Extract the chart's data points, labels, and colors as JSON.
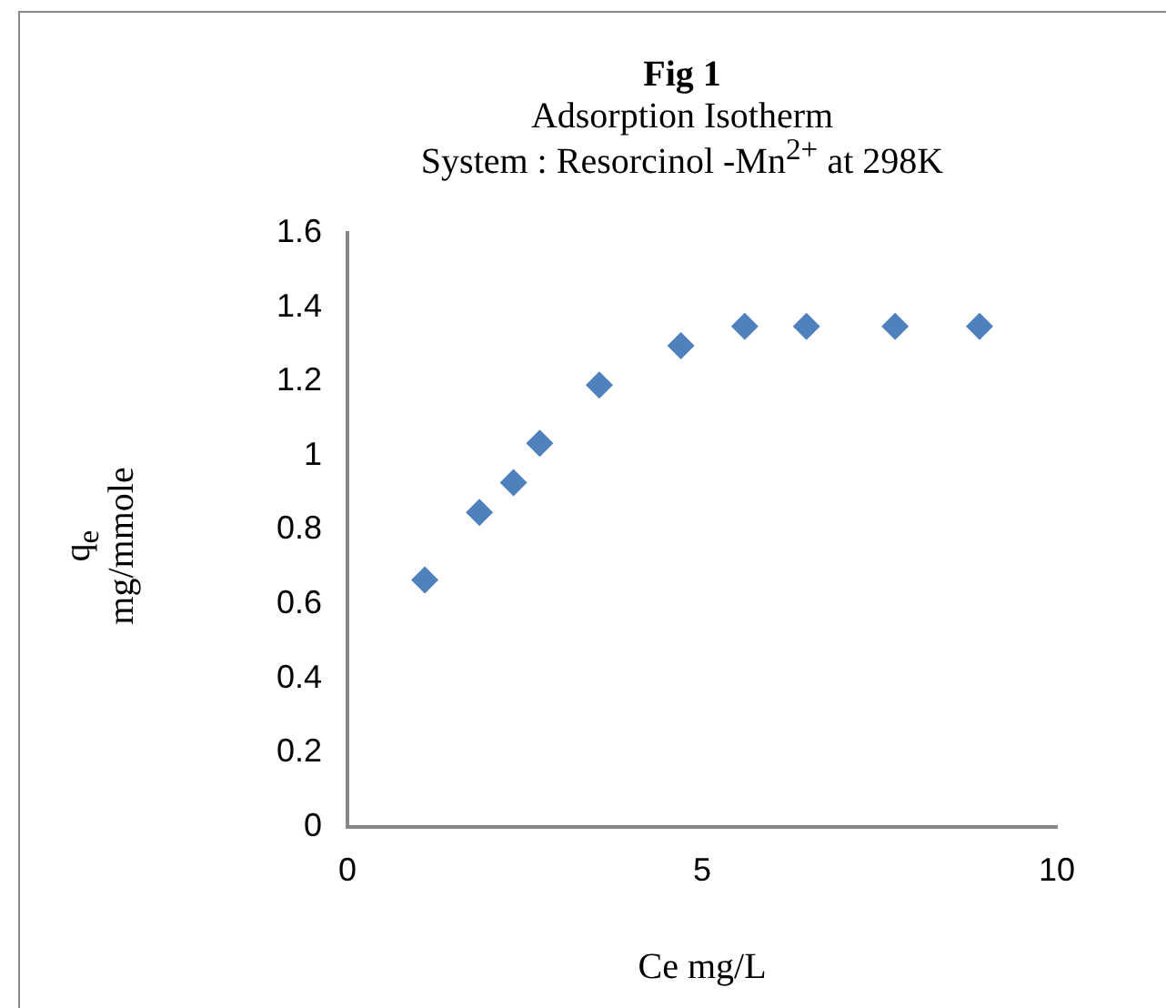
{
  "chart_data": {
    "type": "scatter",
    "title": "Fig 1",
    "subtitle": "Adsorption Isotherm\nSystem : Resorcinol -Mn$^{2+}$ at 298K",
    "xlabel": "Ce mg/L",
    "ylabel": "q$_{e}$\nmg/mmole",
    "x": [
      1.09,
      1.86,
      2.34,
      2.71,
      3.55,
      4.7,
      5.6,
      6.47,
      7.72,
      8.91
    ],
    "series": [
      {
        "color": "#4f81bd",
        "values": [
          0.665,
          0.847,
          0.927,
          1.033,
          1.19,
          1.296,
          1.348,
          1.348,
          1.348,
          1.348
        ]
      }
    ],
    "xlim": [
      0,
      10
    ],
    "xticks": [
      0,
      5,
      10
    ],
    "ylim": [
      0,
      1.6
    ],
    "yticks": [
      0,
      0.2,
      0.4,
      0.6,
      0.8,
      1,
      1.2,
      1.4,
      1.6
    ],
    "grid": false,
    "legend": false,
    "marker": "diamond"
  }
}
